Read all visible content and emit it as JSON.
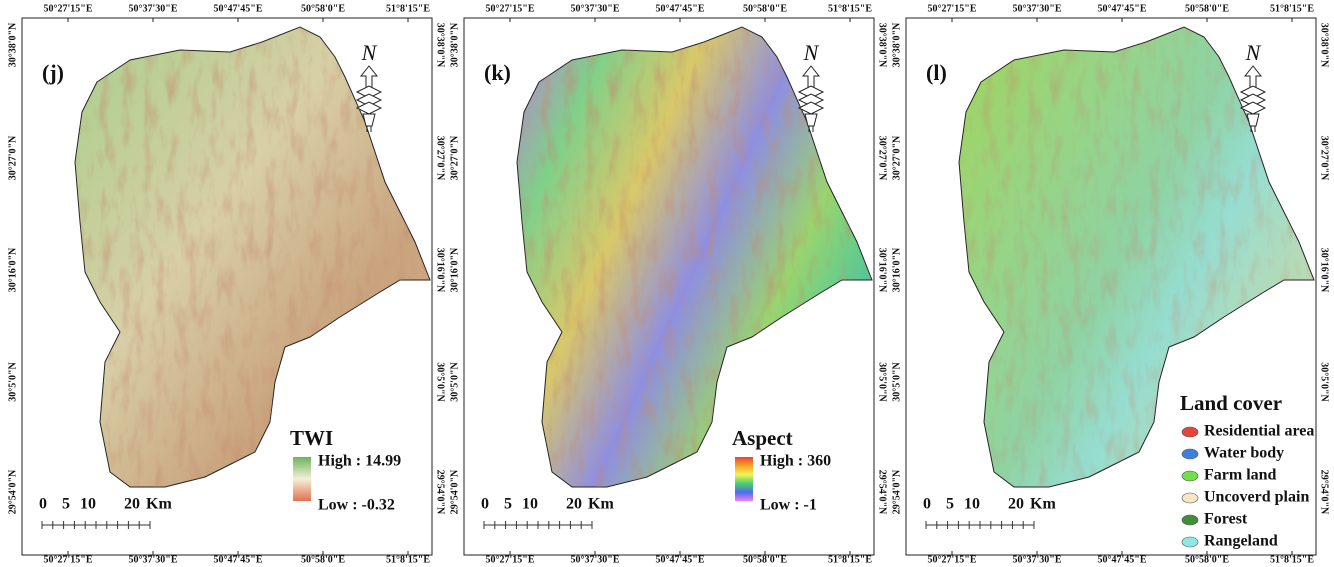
{
  "longitude_labels": [
    "50°27'15\"E",
    "50°37'30\"E",
    "50°47'45\"E",
    "50°58'0\"E",
    "51°8'15\"E"
  ],
  "latitude_labels": [
    "30°38'0\"N",
    "30°27'0\"N",
    "30°16'0\"N",
    "30°5'0\"N",
    "29°54'0\"N"
  ],
  "north_label": "N",
  "scale_bar": {
    "ticks": [
      "0",
      "5",
      "10",
      "20"
    ],
    "unit": "Km"
  },
  "panels": [
    {
      "label": "(j)",
      "legend": {
        "title": "TWI",
        "high": "High : 14.99",
        "low": "Low : -0.32"
      }
    },
    {
      "label": "(k)",
      "legend": {
        "title": "Aspect",
        "high": "High : 360",
        "low": "Low : -1"
      }
    },
    {
      "label": "(l)",
      "legend": {
        "title": "Land cover",
        "items": [
          {
            "label": "Residential area",
            "color": "#e8433a"
          },
          {
            "label": "Water body",
            "color": "#3d7ee0"
          },
          {
            "label": "Farm land",
            "color": "#6fe04a"
          },
          {
            "label": "Uncoverd plain",
            "color": "#f2e8c4"
          },
          {
            "label": "Forest",
            "color": "#3e8e3a"
          },
          {
            "label": "Rangeland",
            "color": "#8ee8e4"
          }
        ]
      }
    }
  ]
}
